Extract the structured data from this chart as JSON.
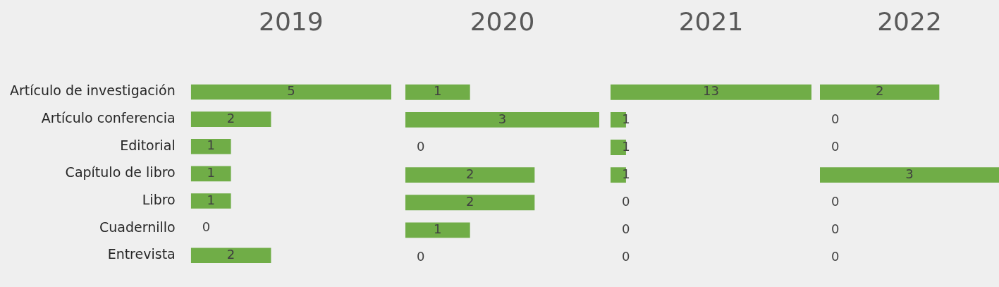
{
  "chart_data": [
    {
      "type": "bar",
      "orientation": "horizontal",
      "title": "2019",
      "categories": [
        "Artículo de investigación",
        "Artículo conferencia",
        "Editorial",
        "Capítulo de libro",
        "Libro",
        "Cuadernillo",
        "Entrevista"
      ],
      "values": [
        5,
        2,
        1,
        1,
        1,
        0,
        2
      ],
      "color": "#70ad47",
      "xlim": [
        0,
        5
      ],
      "data_labels": true,
      "tick_labels": "y"
    },
    {
      "type": "bar",
      "orientation": "horizontal",
      "title": "2020",
      "values": [
        1,
        3,
        0,
        2,
        2,
        1,
        0
      ],
      "color": "#70ad47",
      "xlim": [
        0,
        3
      ],
      "data_labels": true,
      "tick_labels": false
    },
    {
      "type": "bar",
      "orientation": "horizontal",
      "title": "2021",
      "values": [
        13,
        1,
        1,
        1,
        0,
        0,
        0
      ],
      "color": "#70ad47",
      "xlim": [
        0,
        13
      ],
      "data_labels": true,
      "tick_labels": false
    },
    {
      "type": "bar",
      "orientation": "horizontal",
      "title": "2022",
      "values": [
        2,
        0,
        0,
        3,
        0,
        0,
        0
      ],
      "color": "#70ad47",
      "xlim": [
        0,
        3
      ],
      "data_labels": true,
      "tick_labels": false
    }
  ]
}
